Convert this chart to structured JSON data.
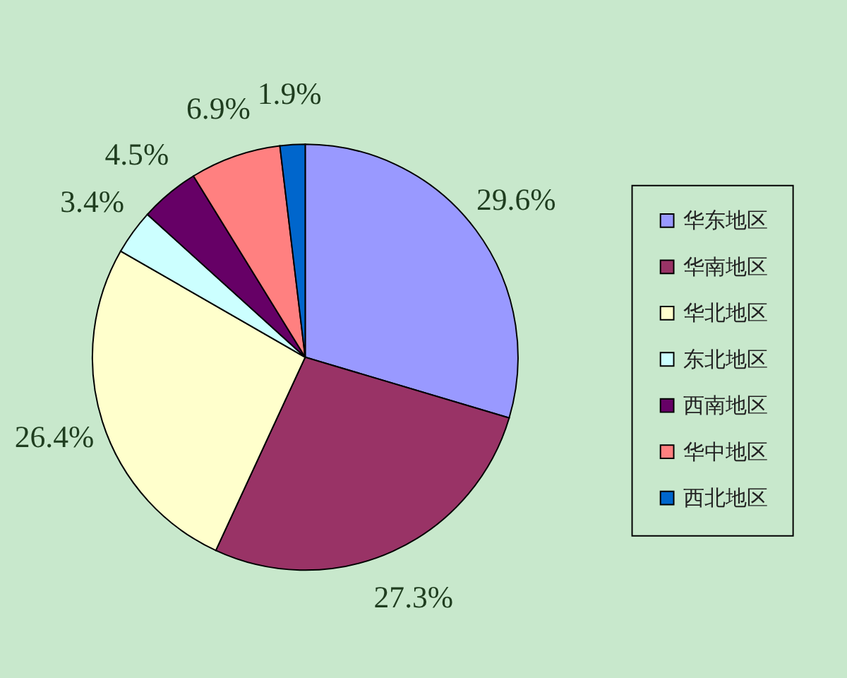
{
  "chart_data": {
    "type": "pie",
    "categories": [
      "华东地区",
      "华南地区",
      "华北地区",
      "东北地区",
      "西南地区",
      "华中地区",
      "西北地区"
    ],
    "values": [
      29.6,
      27.3,
      26.4,
      3.4,
      4.5,
      6.9,
      1.9
    ],
    "colors": [
      "#9999ff",
      "#993366",
      "#ffffcc",
      "#ccffff",
      "#660066",
      "#ff8080",
      "#0066cc"
    ],
    "value_labels": [
      "29.6%",
      "27.3%",
      "26.4%",
      "3.4%",
      "4.5%",
      "6.9%",
      "1.9%"
    ],
    "legend": "right"
  }
}
